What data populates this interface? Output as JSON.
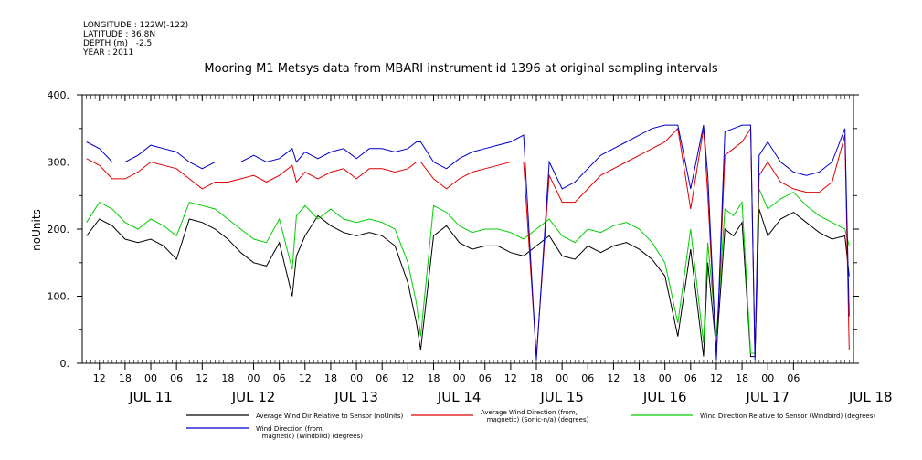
{
  "header": {
    "longitude": "LONGITUDE : 122W(-122)",
    "latitude": "LATITUDE : 36.8N",
    "depth": "DEPTH (m) : -2.5",
    "year": "YEAR : 2011"
  },
  "title": "Mooring M1 Metsys data from MBARI instrument id 1396 at original sampling intervals",
  "colors": {
    "black": "#000000",
    "red": "#e00000",
    "green": "#00d000",
    "blue": "#0000cc"
  },
  "chart_data": {
    "type": "line",
    "title": "Mooring M1 Metsys data from MBARI instrument id 1396 at original sampling intervals",
    "ylabel": "noUnits",
    "ylim": [
      0,
      400
    ],
    "y_ticks": [
      "0.",
      "100.",
      "200.",
      "300.",
      "400."
    ],
    "xlim_hours": [
      -16,
      164
    ],
    "hour_ticks": [
      "12",
      "18",
      "00",
      "06",
      "12",
      "18",
      "00",
      "06",
      "12",
      "18",
      "00",
      "06",
      "12",
      "18",
      "00",
      "06",
      "12",
      "18",
      "00",
      "06",
      "12",
      "18",
      "00",
      "06",
      "12",
      "18",
      "00",
      "06"
    ],
    "day_labels": [
      "JUL 11",
      "JUL 12",
      "JUL 13",
      "JUL 14",
      "JUL 15",
      "JUL 16",
      "JUL 17",
      "JUL 18"
    ],
    "series": [
      {
        "name": "Average Wind Dir Relative to Sensor (noUnits)",
        "color": "#000000",
        "x": [
          -15,
          -12,
          -9,
          -6,
          -3,
          0,
          3,
          6,
          9,
          12,
          15,
          18,
          21,
          24,
          27,
          30,
          33,
          34,
          36,
          39,
          42,
          45,
          48,
          51,
          54,
          57,
          60,
          62,
          63,
          66,
          69,
          72,
          75,
          78,
          81,
          84,
          87,
          90,
          93,
          96,
          99,
          102,
          105,
          108,
          111,
          114,
          117,
          120,
          123,
          126,
          129,
          130,
          132,
          134,
          136,
          138,
          140,
          141,
          142,
          144,
          147,
          150,
          153,
          156,
          159,
          162,
          163
        ],
        "y": [
          190,
          215,
          205,
          185,
          180,
          185,
          175,
          155,
          215,
          210,
          200,
          185,
          165,
          150,
          145,
          180,
          100,
          160,
          190,
          220,
          205,
          195,
          190,
          195,
          190,
          175,
          120,
          60,
          20,
          190,
          205,
          180,
          170,
          175,
          175,
          165,
          160,
          175,
          190,
          160,
          155,
          175,
          165,
          175,
          180,
          170,
          155,
          130,
          40,
          170,
          10,
          150,
          20,
          200,
          190,
          210,
          10,
          10,
          230,
          190,
          215,
          225,
          210,
          195,
          185,
          190,
          130
        ]
      },
      {
        "name": "Average Wind Direction (from, magnetic) (Sonic-n/a) (degrees)",
        "color": "#e00000",
        "x": [
          -15,
          -12,
          -9,
          -6,
          -3,
          0,
          3,
          6,
          9,
          12,
          15,
          18,
          21,
          24,
          27,
          30,
          33,
          34,
          36,
          39,
          42,
          45,
          48,
          51,
          54,
          57,
          60,
          62,
          63,
          66,
          69,
          72,
          75,
          78,
          81,
          84,
          87,
          90,
          93,
          96,
          99,
          102,
          105,
          108,
          111,
          114,
          117,
          120,
          123,
          126,
          129,
          130,
          132,
          134,
          136,
          138,
          140,
          141,
          142,
          144,
          147,
          150,
          153,
          156,
          159,
          162,
          163
        ],
        "y": [
          305,
          295,
          275,
          275,
          285,
          300,
          295,
          290,
          275,
          260,
          270,
          270,
          275,
          280,
          270,
          280,
          295,
          270,
          285,
          275,
          285,
          290,
          275,
          290,
          290,
          285,
          290,
          300,
          300,
          275,
          260,
          275,
          285,
          290,
          295,
          300,
          300,
          10,
          280,
          240,
          240,
          260,
          280,
          290,
          300,
          310,
          320,
          330,
          350,
          230,
          350,
          250,
          10,
          310,
          320,
          330,
          350,
          10,
          280,
          300,
          270,
          260,
          255,
          255,
          270,
          340,
          20
        ]
      },
      {
        "name": "Wind Direction Relative to Sensor (Windbird) (degrees)",
        "color": "#00d000",
        "x": [
          -15,
          -12,
          -9,
          -6,
          -3,
          0,
          3,
          6,
          9,
          12,
          15,
          18,
          21,
          24,
          27,
          30,
          33,
          34,
          36,
          39,
          42,
          45,
          48,
          51,
          54,
          57,
          60,
          62,
          63,
          66,
          69,
          72,
          75,
          78,
          81,
          84,
          87,
          90,
          93,
          96,
          99,
          102,
          105,
          108,
          111,
          114,
          117,
          120,
          123,
          126,
          129,
          130,
          132,
          134,
          136,
          138,
          140,
          141,
          142,
          144,
          147,
          150,
          153,
          156,
          159,
          162,
          163
        ],
        "y": [
          210,
          240,
          230,
          210,
          200,
          215,
          205,
          190,
          240,
          235,
          230,
          215,
          200,
          185,
          180,
          215,
          140,
          220,
          235,
          215,
          230,
          215,
          210,
          215,
          210,
          200,
          150,
          90,
          40,
          235,
          225,
          205,
          195,
          200,
          200,
          195,
          185,
          200,
          215,
          190,
          180,
          200,
          195,
          205,
          210,
          200,
          180,
          150,
          60,
          200,
          30,
          180,
          40,
          230,
          220,
          240,
          15,
          15,
          260,
          230,
          245,
          255,
          235,
          220,
          210,
          200,
          175
        ]
      },
      {
        "name": "Wind Direction (from, magnetic) (Windbird) (degrees)",
        "color": "#0000cc",
        "x": [
          -15,
          -12,
          -9,
          -6,
          -3,
          0,
          3,
          6,
          9,
          12,
          15,
          18,
          21,
          24,
          27,
          30,
          33,
          34,
          36,
          39,
          42,
          45,
          48,
          51,
          54,
          57,
          60,
          62,
          63,
          66,
          69,
          72,
          75,
          78,
          81,
          84,
          87,
          90,
          93,
          96,
          99,
          102,
          105,
          108,
          111,
          114,
          117,
          120,
          123,
          126,
          129,
          130,
          132,
          134,
          136,
          138,
          140,
          141,
          142,
          144,
          147,
          150,
          153,
          156,
          159,
          162,
          163
        ],
        "y": [
          330,
          320,
          300,
          300,
          310,
          325,
          320,
          315,
          300,
          290,
          300,
          300,
          300,
          310,
          300,
          305,
          320,
          300,
          315,
          305,
          315,
          320,
          305,
          320,
          320,
          315,
          320,
          330,
          330,
          300,
          290,
          305,
          315,
          320,
          325,
          330,
          340,
          5,
          300,
          260,
          270,
          290,
          310,
          320,
          330,
          340,
          350,
          355,
          355,
          260,
          355,
          280,
          5,
          345,
          350,
          355,
          355,
          5,
          310,
          330,
          300,
          285,
          280,
          285,
          300,
          350,
          70
        ]
      }
    ],
    "legend": [
      {
        "label": "Average Wind Dir Relative to Sensor (noUnits)",
        "color": "#000000"
      },
      {
        "label": "Average Wind Direction (from,\n   magnetic) (Sonic-n/a) (degrees)",
        "color": "#e00000"
      },
      {
        "label": "Wind Direction Relative to Sensor (Windbird) (degrees)",
        "color": "#00d000"
      },
      {
        "label": "Wind Direction (from,\n   magnetic) (Windbird) (degrees)",
        "color": "#0000cc"
      }
    ]
  }
}
